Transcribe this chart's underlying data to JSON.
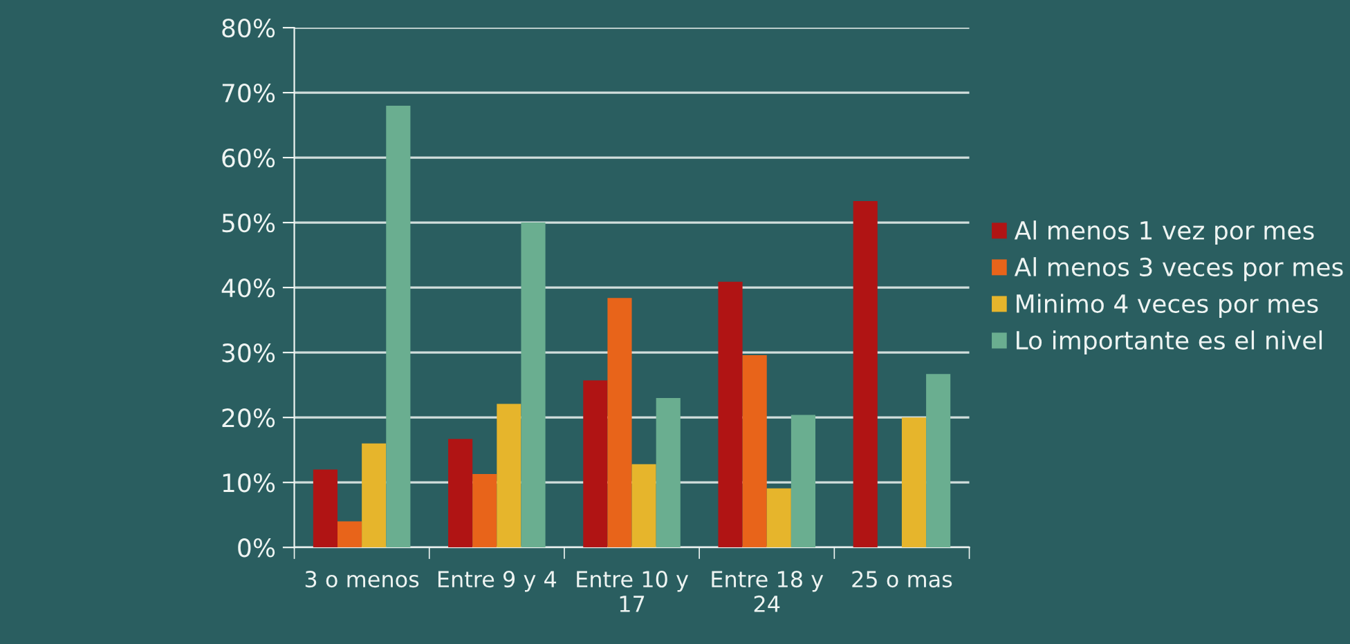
{
  "chart_data": {
    "type": "bar",
    "categories": [
      "3 o menos",
      "Entre 9 y 4",
      "Entre 10 y 17",
      "Entre 18 y 24",
      "25 o mas"
    ],
    "series": [
      {
        "name": "Al menos 1 vez por mes",
        "color": "#b01414",
        "values": [
          12,
          16.7,
          25.7,
          40.9,
          53.3
        ]
      },
      {
        "name": "Al menos 3 veces por mes",
        "color": "#e8641a",
        "values": [
          4,
          11.3,
          38.4,
          29.6,
          null
        ]
      },
      {
        "name": "Minimo 4 veces por mes",
        "color": "#e6b52c",
        "values": [
          16,
          22.1,
          12.8,
          9.1,
          20
        ]
      },
      {
        "name": "Lo importante es el nivel",
        "color": "#6aae90",
        "values": [
          68,
          50,
          23,
          20.4,
          26.7
        ]
      }
    ],
    "ylim": [
      0,
      80
    ],
    "yticks": [
      {
        "value": 0,
        "label": "0%"
      },
      {
        "value": 10,
        "label": "10%"
      },
      {
        "value": 20,
        "label": "20%"
      },
      {
        "value": 30,
        "label": "30%"
      },
      {
        "value": 40,
        "label": "40%"
      },
      {
        "value": 50,
        "label": "50%"
      },
      {
        "value": 60,
        "label": "60%"
      },
      {
        "value": 70,
        "label": "70%"
      },
      {
        "value": 80,
        "label": "80%"
      }
    ],
    "grid": "y",
    "legend": "right"
  }
}
